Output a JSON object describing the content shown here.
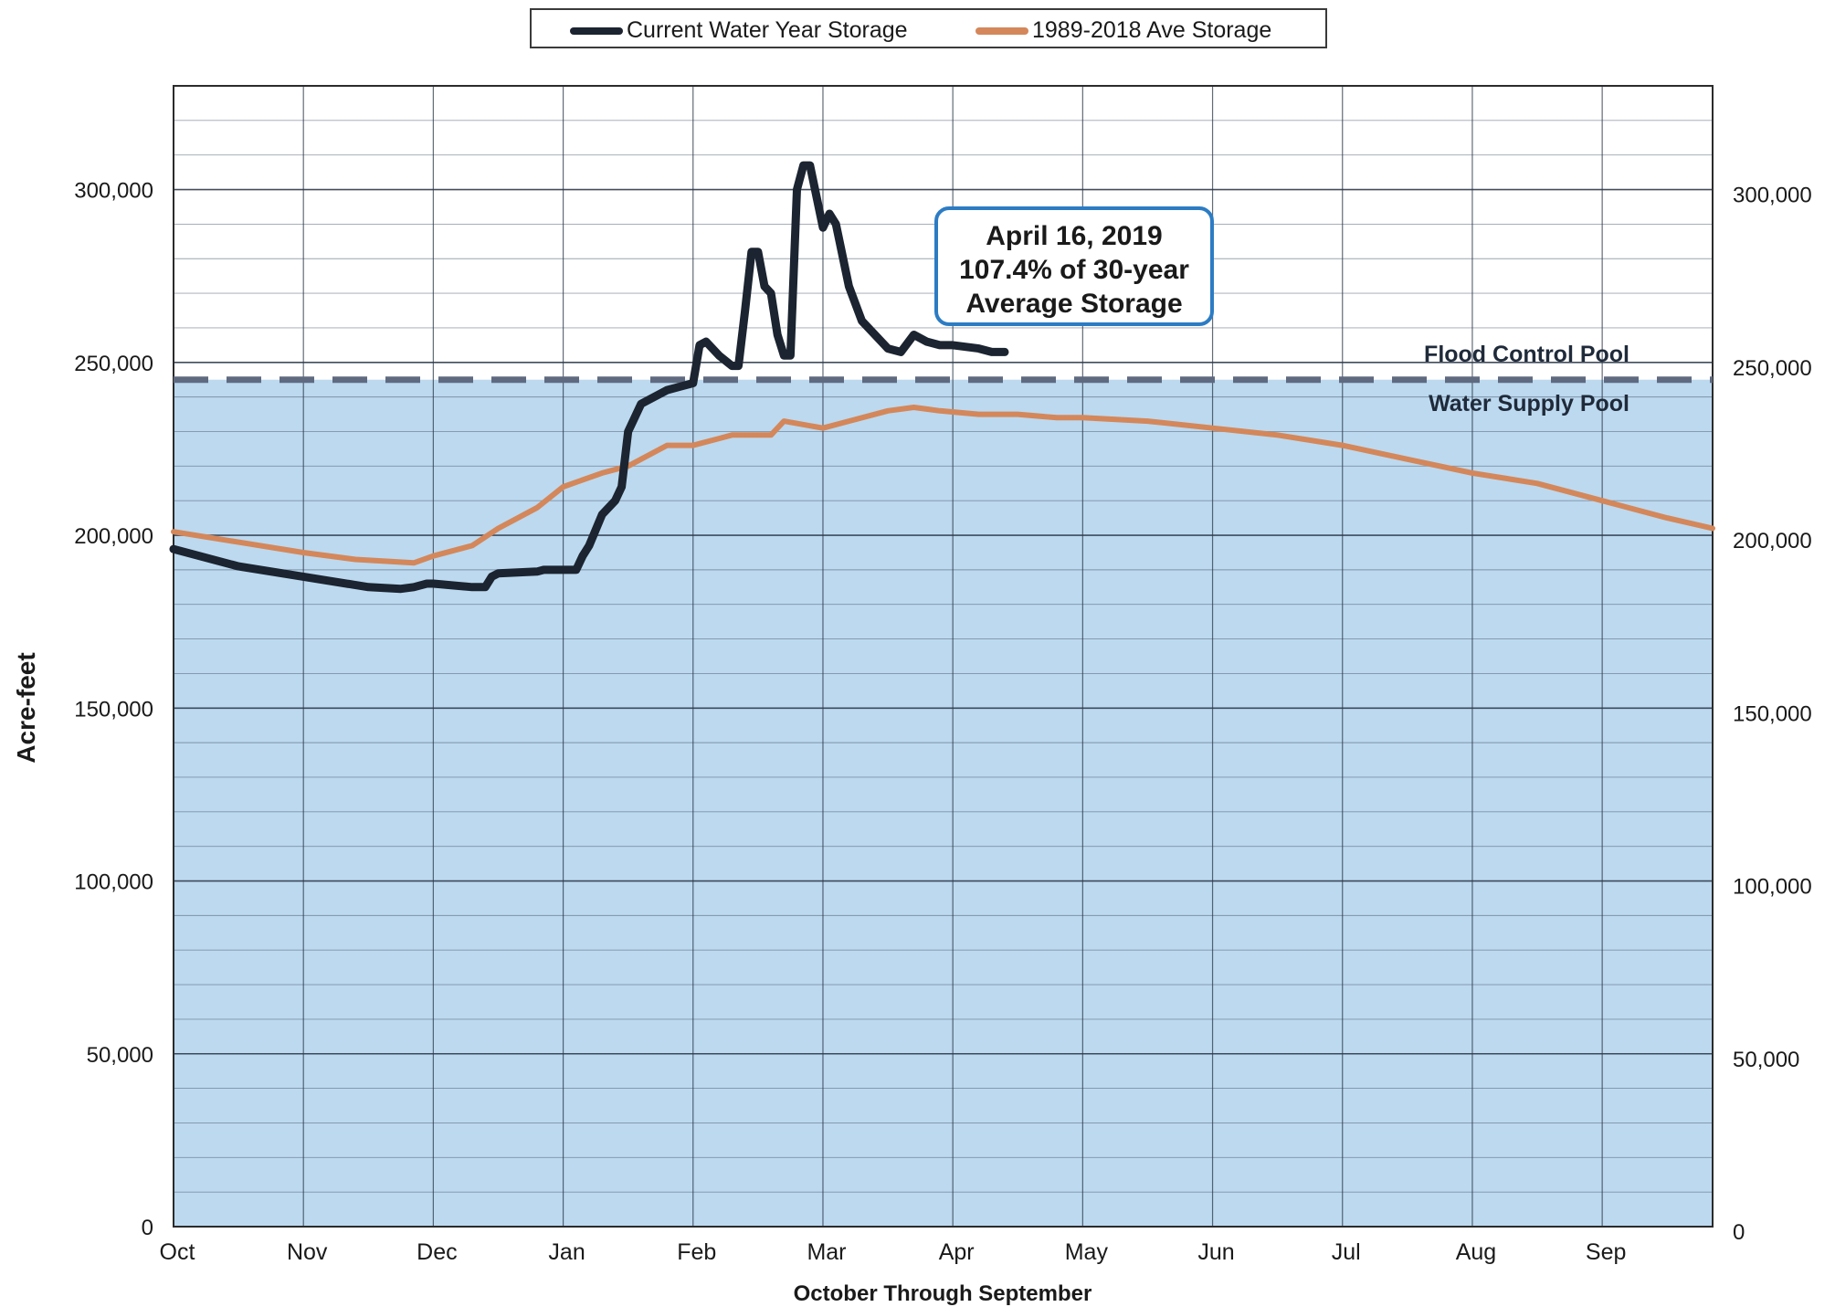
{
  "chart_data": {
    "type": "line",
    "xlabel": "October Through September",
    "ylabel": "Acre-feet",
    "ylim": [
      0,
      330000
    ],
    "y_ticks": [
      0,
      50000,
      100000,
      150000,
      200000,
      250000,
      300000
    ],
    "y_tick_labels": [
      "0",
      "50,000",
      "100,000",
      "150,000",
      "200,000",
      "250,000",
      "300,000"
    ],
    "x_range": [
      0,
      11.85
    ],
    "x_ticks": [
      0,
      1,
      2,
      3,
      4,
      5,
      6,
      7,
      8,
      9,
      10,
      11
    ],
    "x_tick_labels": [
      "Oct",
      "Nov",
      "Dec",
      "Jan",
      "Feb",
      "Mar",
      "Apr",
      "May",
      "Jun",
      "Jul",
      "Aug",
      "Sep"
    ],
    "grid": true,
    "secondary_y_axis": true,
    "legend_position": "top-center",
    "pool_level": 245000,
    "pool_labels": {
      "upper": "Flood Control Pool",
      "lower": "Water Supply Pool"
    },
    "pool_fill_color": "#bcd9ef",
    "series": [
      {
        "name": "Current Water Year Storage",
        "color": "#1b2430",
        "x": [
          0,
          0.5,
          1,
          1.5,
          1.75,
          1.85,
          1.95,
          2.0,
          2.3,
          2.4,
          2.45,
          2.5,
          2.8,
          2.85,
          3.0,
          3.1,
          3.15,
          3.2,
          3.3,
          3.4,
          3.45,
          3.5,
          3.6,
          3.8,
          3.9,
          4.0,
          4.05,
          4.1,
          4.2,
          4.3,
          4.35,
          4.4,
          4.45,
          4.5,
          4.55,
          4.6,
          4.65,
          4.7,
          4.75,
          4.8,
          4.85,
          4.9,
          5.0,
          5.05,
          5.1,
          5.2,
          5.3,
          5.5,
          5.6,
          5.7,
          5.8,
          5.9,
          6.0,
          6.2,
          6.3,
          6.4
        ],
        "y": [
          196000,
          191000,
          188000,
          185000,
          184500,
          185000,
          186000,
          186000,
          185000,
          185000,
          188000,
          189000,
          189500,
          190000,
          190000,
          190000,
          194000,
          197000,
          206000,
          210000,
          214000,
          230000,
          238000,
          242000,
          243000,
          244000,
          255000,
          256000,
          252000,
          249000,
          249000,
          265000,
          282000,
          282000,
          272000,
          270000,
          258000,
          252000,
          252000,
          300000,
          307000,
          307000,
          289000,
          293000,
          290000,
          272000,
          262000,
          254000,
          253000,
          258000,
          256000,
          255000,
          255000,
          254000,
          253000,
          253000
        ]
      },
      {
        "name": "1989-2018 Ave Storage",
        "color": "#d4875a",
        "x": [
          0,
          0.5,
          1,
          1.4,
          1.85,
          2.0,
          2.3,
          2.5,
          2.8,
          3.0,
          3.3,
          3.5,
          3.8,
          4.0,
          4.2,
          4.3,
          4.6,
          4.7,
          5.0,
          5.2,
          5.5,
          5.7,
          5.9,
          6.2,
          6.5,
          6.8,
          7.0,
          7.5,
          8.0,
          8.5,
          9.0,
          9.5,
          10.0,
          10.5,
          11.0,
          11.5,
          11.85
        ],
        "y": [
          201000,
          198000,
          195000,
          193000,
          192000,
          194000,
          197000,
          202000,
          208000,
          214000,
          218000,
          220000,
          226000,
          226000,
          228000,
          229000,
          229000,
          233000,
          231000,
          233000,
          236000,
          237000,
          236000,
          235000,
          235000,
          234000,
          234000,
          233000,
          231000,
          229000,
          226000,
          222000,
          218000,
          215000,
          210000,
          205000,
          202000
        ]
      }
    ],
    "annotation": {
      "lines": [
        "April 16, 2019",
        "107.4% of 30-year",
        "Average Storage"
      ]
    }
  }
}
